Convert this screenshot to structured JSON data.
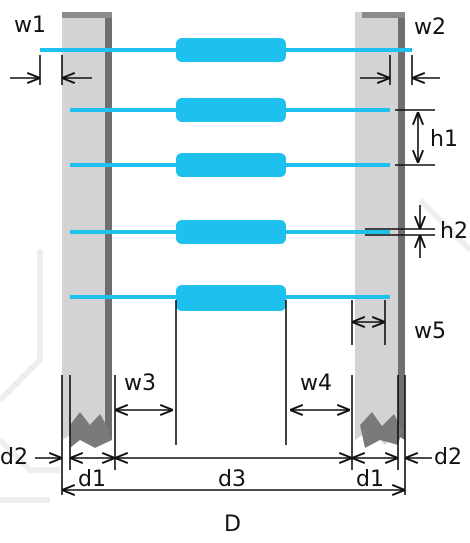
{
  "labels": [
    "w1",
    "w2",
    "h1",
    "h2",
    "w5",
    "w3",
    "w4",
    "d2",
    "d2",
    "d1",
    "d3",
    "d1",
    "D"
  ]
}
